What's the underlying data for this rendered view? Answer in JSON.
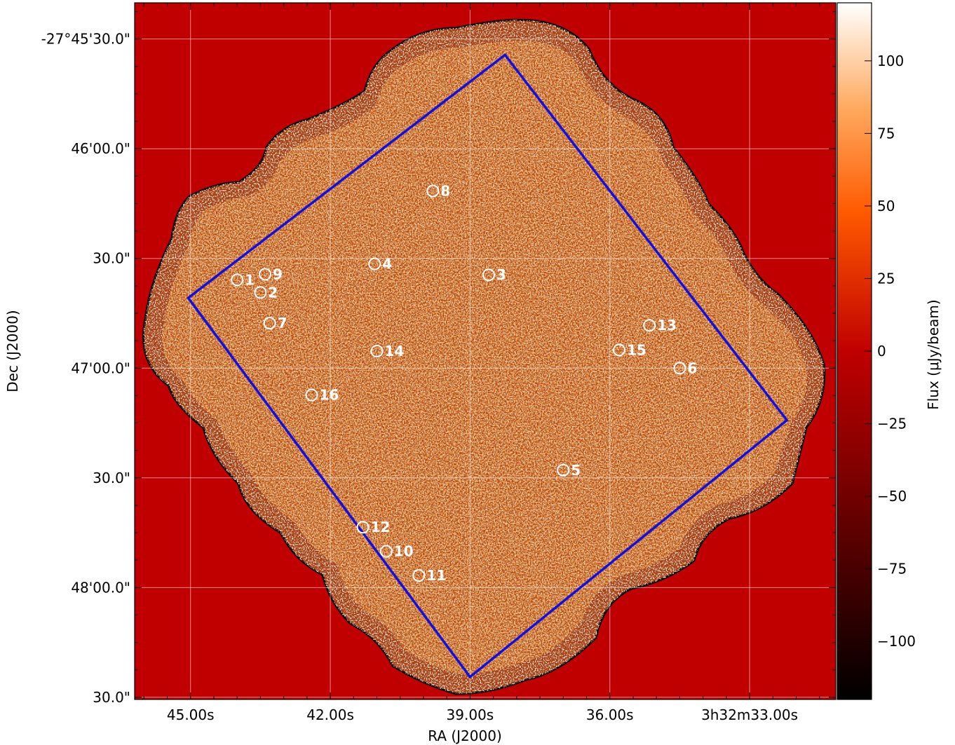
{
  "chart_data": {
    "type": "heatmap",
    "title": "",
    "xlabel": "RA (J2000)",
    "ylabel": "Dec (J2000)",
    "xlim_seconds": [
      46.2,
      31.15
    ],
    "ylim_arcsec": [
      -2763.4,
      -2890.4
    ],
    "x_ticks": [
      {
        "value": 45.0,
        "label": "45.00s"
      },
      {
        "value": 42.0,
        "label": "42.00s"
      },
      {
        "value": 39.0,
        "label": "39.00s"
      },
      {
        "value": 36.0,
        "label": "36.00s"
      },
      {
        "value": 33.0,
        "label": "3h32m33.00s"
      }
    ],
    "y_ticks": [
      {
        "value": -2770,
        "label": "-27°45'30.0\""
      },
      {
        "value": -2790,
        "label": "46'00.0\""
      },
      {
        "value": -2810,
        "label": "30.0\""
      },
      {
        "value": -2830,
        "label": "47'00.0\""
      },
      {
        "value": -2850,
        "label": "30.0\""
      },
      {
        "value": -2870,
        "label": "48'00.0\""
      },
      {
        "value": -2890,
        "label": "30.0\""
      }
    ],
    "grid": true,
    "colormap": "gist_heat",
    "background_color": "#c00000",
    "colorbar": {
      "label": "Flux (μJy/beam)",
      "min": -120,
      "max": 120,
      "ticks": [
        {
          "value": 100,
          "label": "100"
        },
        {
          "value": 75,
          "label": "75"
        },
        {
          "value": 50,
          "label": "50"
        },
        {
          "value": 25,
          "label": "25"
        },
        {
          "value": 0,
          "label": "0"
        },
        {
          "value": -25,
          "label": "−25"
        },
        {
          "value": -50,
          "label": "−50"
        },
        {
          "value": -75,
          "label": "−75"
        },
        {
          "value": -100,
          "label": "−100"
        }
      ]
    },
    "footprint": {
      "color": "#1010e0",
      "corners": [
        {
          "ra": 38.25,
          "dec": -2772.9
        },
        {
          "ra": 32.2,
          "dec": -2839.5
        },
        {
          "ra": 39.0,
          "dec": -2886.3
        },
        {
          "ra": 45.05,
          "dec": -2817.2
        }
      ]
    },
    "sources": [
      {
        "id": "1",
        "ra": 44.0,
        "dec": -2813.9
      },
      {
        "id": "2",
        "ra": 43.5,
        "dec": -2816.2
      },
      {
        "id": "3",
        "ra": 38.6,
        "dec": -2813.0
      },
      {
        "id": "4",
        "ra": 41.05,
        "dec": -2811.0
      },
      {
        "id": "5",
        "ra": 37.0,
        "dec": -2848.6
      },
      {
        "id": "6",
        "ra": 34.5,
        "dec": -2830.0
      },
      {
        "id": "7",
        "ra": 43.3,
        "dec": -2821.8
      },
      {
        "id": "8",
        "ra": 39.8,
        "dec": -2797.7
      },
      {
        "id": "9",
        "ra": 43.4,
        "dec": -2812.9
      },
      {
        "id": "10",
        "ra": 40.8,
        "dec": -2863.4
      },
      {
        "id": "11",
        "ra": 40.1,
        "dec": -2867.8
      },
      {
        "id": "12",
        "ra": 41.3,
        "dec": -2859.0
      },
      {
        "id": "13",
        "ra": 35.15,
        "dec": -2822.2
      },
      {
        "id": "14",
        "ra": 41.0,
        "dec": -2826.9
      },
      {
        "id": "15",
        "ra": 35.8,
        "dec": -2826.7
      },
      {
        "id": "16",
        "ra": 42.4,
        "dec": -2834.9
      }
    ]
  }
}
